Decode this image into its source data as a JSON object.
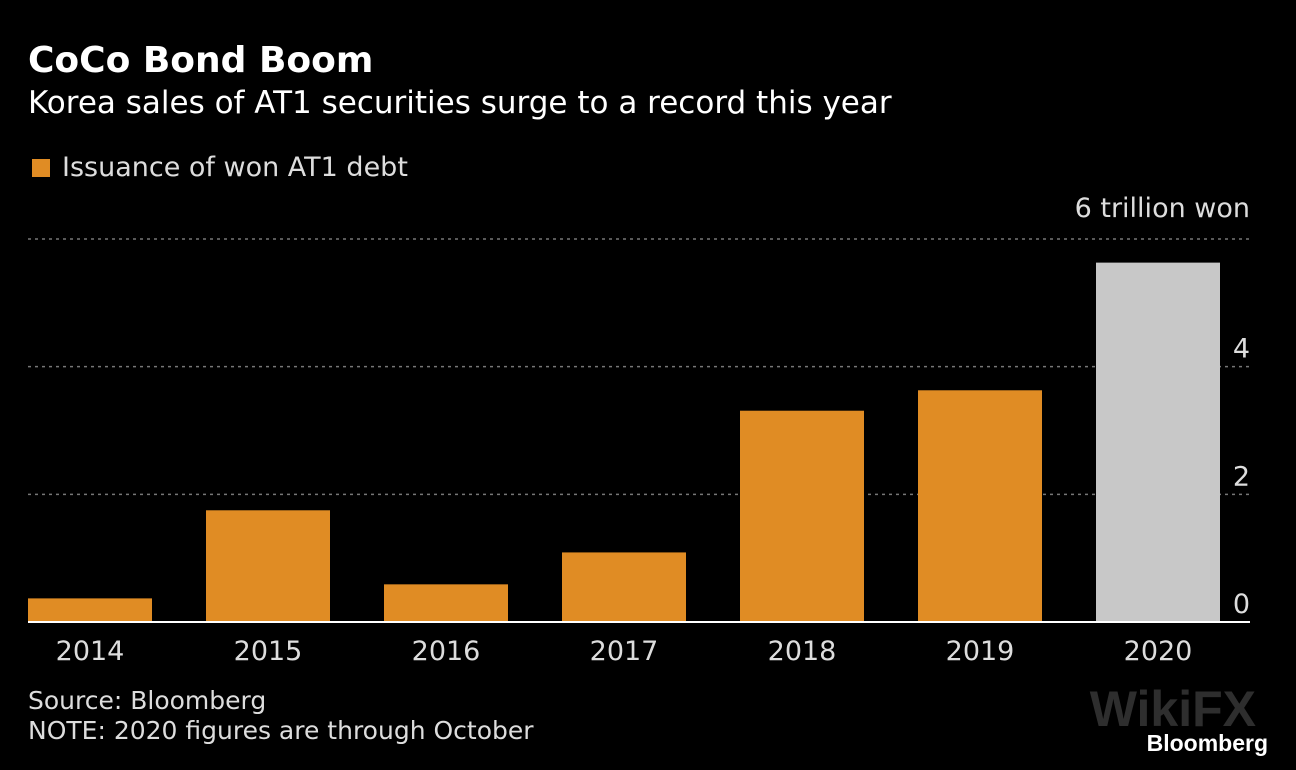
{
  "chart_data": {
    "type": "bar",
    "title": "CoCo Bond Boom",
    "subtitle": "Korea sales of AT1 securities surge to a record this year",
    "legend": [
      "Issuance of won AT1 debt"
    ],
    "categories": [
      "2014",
      "2015",
      "2016",
      "2017",
      "2018",
      "2019",
      "2020"
    ],
    "values": [
      0.37,
      1.75,
      0.59,
      1.09,
      3.31,
      3.63,
      5.63
    ],
    "highlight": [
      false,
      false,
      false,
      false,
      false,
      false,
      true
    ],
    "ylim": [
      0,
      6
    ],
    "yticks": [
      0,
      2,
      4,
      6
    ],
    "ytick_labels": [
      "0",
      "2",
      "4",
      "6 trillion won"
    ],
    "grid": true,
    "colors": {
      "bar": "#e08c24",
      "highlight": "#c8c8c8"
    }
  },
  "footer": {
    "source": "Source: Bloomberg",
    "note": "NOTE: 2020 figures are through October",
    "brand": "Bloomberg",
    "watermark": "WikiFX"
  }
}
